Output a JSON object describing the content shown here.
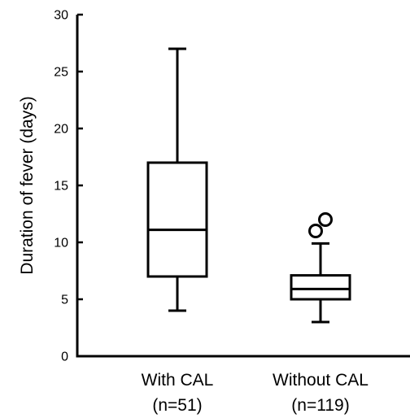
{
  "chart_data": {
    "type": "box",
    "title": "",
    "xlabel": "",
    "ylabel": "Duration of fever (days)",
    "ylim": [
      0,
      30
    ],
    "yticks": [
      0,
      5,
      10,
      15,
      20,
      25,
      30
    ],
    "grid": false,
    "categories": [
      {
        "label": "With CAL",
        "sublabel": "(n=51)"
      },
      {
        "label": "Without CAL",
        "sublabel": "(n=119)"
      }
    ],
    "boxes": [
      {
        "whisker_low": 4,
        "q1": 7,
        "median": 11.1,
        "q3": 17,
        "whisker_high": 27,
        "outliers": []
      },
      {
        "whisker_low": 3,
        "q1": 5,
        "median": 5.9,
        "q3": 7.1,
        "whisker_high": 9.9,
        "outliers": [
          11,
          12
        ]
      }
    ]
  }
}
